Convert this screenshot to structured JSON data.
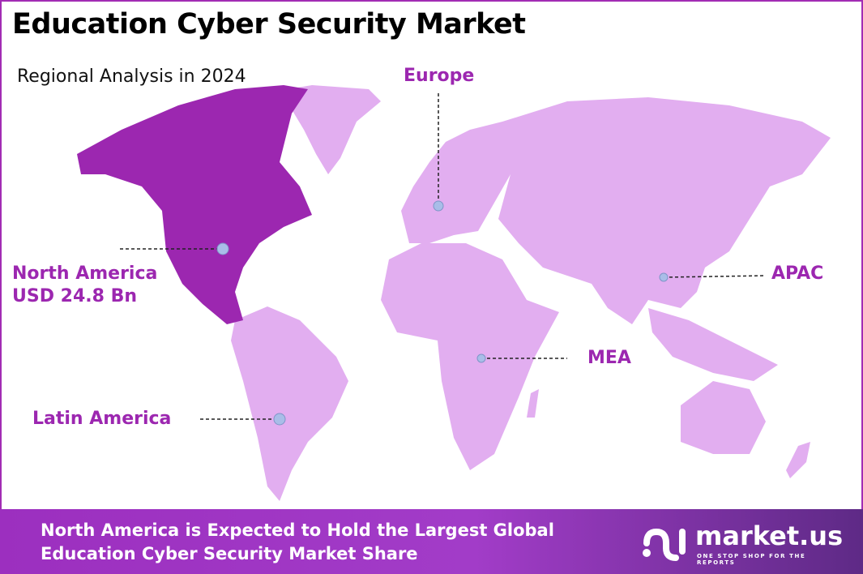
{
  "title": "Education Cyber Security Market",
  "subtitle": "Regional Analysis in 2024",
  "colors": {
    "highlight_region": "#9c27b0",
    "other_regions": "#e2aef0",
    "marker": "#a9bde8",
    "label": "#9c27b0",
    "footer": "#a23cc8"
  },
  "regions": [
    {
      "name": "North America",
      "value": "USD 24.8 Bn",
      "highlighted": true
    },
    {
      "name": "Europe",
      "highlighted": false
    },
    {
      "name": "APAC",
      "highlighted": false
    },
    {
      "name": "MEA",
      "highlighted": false
    },
    {
      "name": "Latin America",
      "highlighted": false
    }
  ],
  "footer": {
    "line1": "North America is Expected to Hold the Largest Global",
    "line2": "Education Cyber Security Market Share"
  },
  "logo": {
    "name": "market.us",
    "tagline": "ONE STOP SHOP FOR THE REPORTS"
  }
}
